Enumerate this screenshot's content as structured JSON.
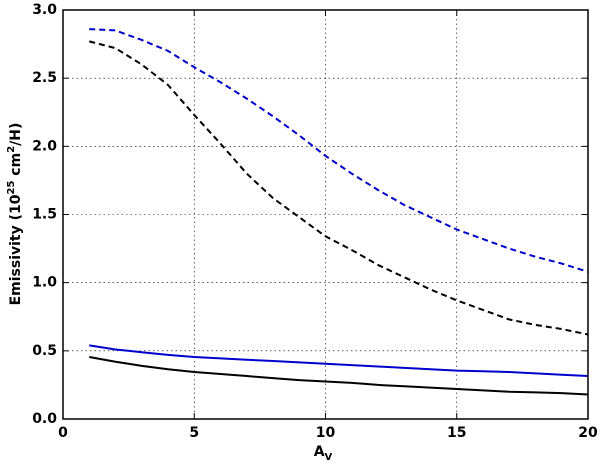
{
  "chart_data": {
    "type": "line",
    "xlabel": [
      "A",
      "V"
    ],
    "ylabel": [
      "Emissivity (10",
      "25",
      " cm",
      "2",
      "/H)"
    ],
    "x": [
      1,
      2,
      3,
      4,
      5,
      6,
      7,
      8,
      9,
      10,
      11,
      12,
      13,
      14,
      15,
      16,
      17,
      18,
      19,
      20
    ],
    "series": [
      {
        "color": "#0000cc",
        "linestyle": "dashed",
        "values": [
          2.86,
          2.85,
          2.78,
          2.7,
          2.58,
          2.47,
          2.35,
          2.22,
          2.08,
          1.93,
          1.8,
          1.68,
          1.57,
          1.48,
          1.39,
          1.32,
          1.25,
          1.19,
          1.14,
          1.08
        ]
      },
      {
        "color": "#000000",
        "linestyle": "dashed",
        "values": [
          2.77,
          2.72,
          2.6,
          2.45,
          2.23,
          2.02,
          1.8,
          1.62,
          1.48,
          1.34,
          1.24,
          1.13,
          1.04,
          0.95,
          0.87,
          0.8,
          0.73,
          0.69,
          0.66,
          0.62
        ]
      },
      {
        "color": "#0000cc",
        "linestyle": "solid",
        "values": [
          0.54,
          0.51,
          0.49,
          0.47,
          0.455,
          0.445,
          0.435,
          0.425,
          0.415,
          0.405,
          0.395,
          0.385,
          0.375,
          0.365,
          0.355,
          0.35,
          0.345,
          0.335,
          0.325,
          0.315
        ]
      },
      {
        "color": "#000000",
        "linestyle": "solid",
        "values": [
          0.455,
          0.42,
          0.39,
          0.365,
          0.345,
          0.33,
          0.315,
          0.3,
          0.285,
          0.275,
          0.265,
          0.25,
          0.24,
          0.23,
          0.22,
          0.21,
          0.2,
          0.195,
          0.19,
          0.18
        ]
      }
    ],
    "xlim": [
      0,
      20
    ],
    "xticks": [
      0,
      5,
      10,
      15,
      20
    ],
    "ylim": [
      0,
      3
    ],
    "yticks": [
      {
        "value": 0,
        "label": "0.0"
      },
      0.5,
      {
        "value": 1,
        "label": "1.0"
      },
      1.5,
      {
        "value": 2,
        "label": "2.0"
      },
      2.5,
      {
        "value": 3,
        "label": "3.0"
      }
    ],
    "grid": true
  }
}
